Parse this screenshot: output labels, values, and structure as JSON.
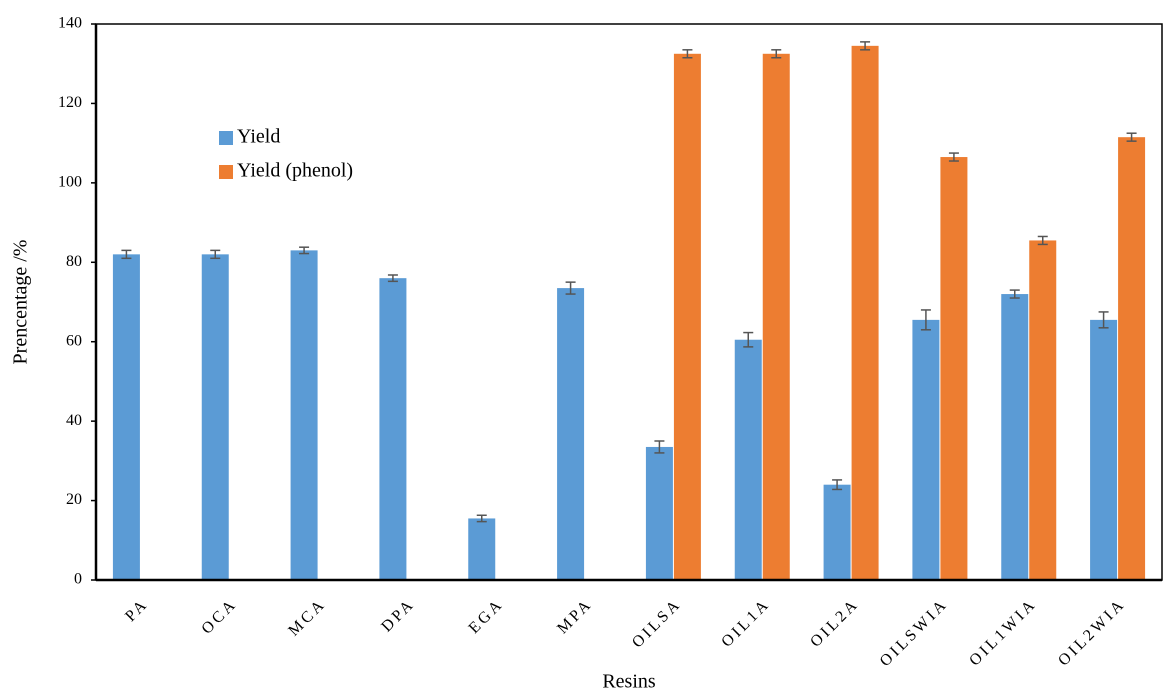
{
  "chart_data": {
    "type": "bar",
    "x_label": "Resins",
    "y_label": "Prencentage /%",
    "categories": [
      "PA",
      "OCA",
      "MCA",
      "DPA",
      "EGA",
      "MPA",
      "OILSA",
      "OIL1A",
      "OIL2A",
      "OILSWIA",
      "OIL1WIA",
      "OIL2WIA"
    ],
    "series": [
      {
        "name": "Yield",
        "color": "#5b9bd5",
        "values": [
          82,
          82,
          83,
          76,
          15.5,
          73.5,
          33.5,
          60.5,
          24,
          65.5,
          72,
          65.5
        ],
        "errors": [
          1,
          1,
          0.8,
          0.8,
          0.8,
          1.5,
          1.5,
          1.8,
          1.2,
          2.5,
          1,
          2
        ]
      },
      {
        "name": "Yield (phenol)",
        "color": "#ed7d31",
        "values": [
          null,
          null,
          null,
          null,
          null,
          null,
          132.5,
          132.5,
          134.5,
          106.5,
          85.5,
          111.5
        ],
        "errors": [
          null,
          null,
          null,
          null,
          null,
          null,
          1,
          1,
          1,
          1,
          1,
          1
        ]
      }
    ],
    "ylim": [
      0,
      140
    ],
    "yticks": [
      0,
      20,
      40,
      60,
      80,
      100,
      120,
      140
    ],
    "grid": false,
    "legend": "upper-left"
  }
}
